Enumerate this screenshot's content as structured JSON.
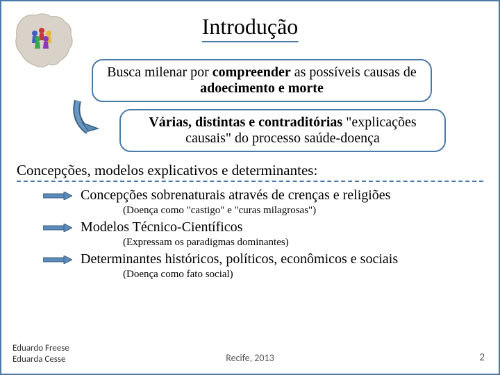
{
  "title": "Introdução",
  "box1_html": "Busca milenar por <b>compreender</b> as possíveis causas de <b>adoecimento e morte</b>",
  "box2_html": "<b>Várias, distintas e contraditórias</b> \"explicações causais\" do processo saúde-doença",
  "section_header": "Concepções, modelos explicativos e determinantes:",
  "bullets": [
    {
      "text": "Concepções sobrenaturais através de crenças e religiões",
      "note": "(Doença como \"castigo\" e \"curas milagrosas\")"
    },
    {
      "text": "Modelos Técnico-Científicos",
      "note_html": "(Expressam os paradigmas dominantes)"
    },
    {
      "text": "Determinantes históricos, políticos, econômicos e sociais",
      "note": "(Doença como fato social)"
    }
  ],
  "authors": [
    "Eduardo Freese",
    "Eduarda Cesse"
  ],
  "footer_center": "Recife, 2013",
  "page_number": "2",
  "colors": {
    "accent": "#4a7aa8",
    "arrow_fill": "#5b8bb8",
    "arrow_stroke": "#3d6185"
  }
}
